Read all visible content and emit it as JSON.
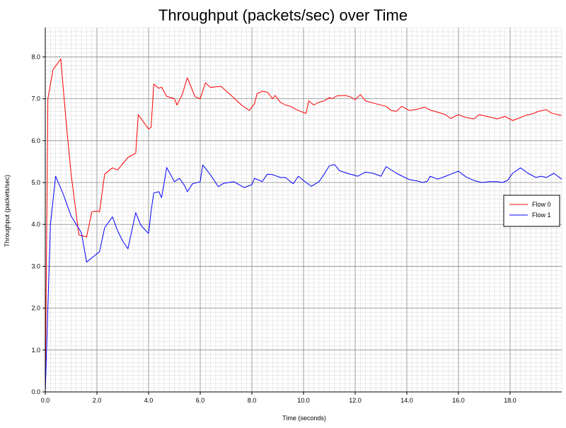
{
  "chart_data": {
    "type": "line",
    "title": "Throughput (packets/sec) over Time",
    "xlabel": "Time (seconds)",
    "ylabel": "Throughput (packets/sec)",
    "xlim": [
      0,
      20
    ],
    "ylim": [
      0,
      8.7
    ],
    "x_ticks": [
      0,
      2,
      4,
      6,
      8,
      10,
      12,
      14,
      16,
      18
    ],
    "x_tick_labels": [
      "0.0",
      "2.0",
      "4.0",
      "6.0",
      "8.0",
      "10.0",
      "12.0",
      "14.0",
      "16.0",
      "18.0"
    ],
    "y_ticks": [
      0,
      1,
      2,
      3,
      4,
      5,
      6,
      7,
      8
    ],
    "y_tick_labels": [
      "0.0",
      "1.0",
      "2.0",
      "3.0",
      "4.0",
      "5.0",
      "6.0",
      "7.0",
      "8.0"
    ],
    "grid": true,
    "legend_position": "right",
    "series": [
      {
        "name": "Flow 0",
        "color": "#ff0000",
        "x": [
          0.0,
          0.1,
          0.3,
          0.6,
          0.8,
          1.0,
          1.3,
          1.6,
          1.8,
          2.0,
          2.1,
          2.3,
          2.6,
          2.8,
          3.2,
          3.5,
          3.6,
          4.0,
          4.1,
          4.2,
          4.4,
          4.5,
          4.7,
          5.0,
          5.1,
          5.3,
          5.5,
          5.8,
          6.0,
          6.2,
          6.4,
          6.8,
          7.2,
          7.6,
          7.9,
          8.1,
          8.2,
          8.4,
          8.6,
          8.8,
          8.9,
          9.1,
          9.3,
          9.5,
          9.7,
          9.8,
          10.1,
          10.2,
          10.4,
          10.6,
          10.8,
          11.0,
          11.1,
          11.3,
          11.6,
          11.8,
          12.0,
          12.2,
          12.4,
          12.8,
          13.2,
          13.4,
          13.6,
          13.8,
          14.1,
          14.4,
          14.7,
          14.9,
          15.2,
          15.5,
          15.7,
          16.0,
          16.3,
          16.6,
          16.8,
          17.1,
          17.5,
          17.8,
          18.1,
          18.3,
          18.6,
          18.9,
          19.1,
          19.4,
          19.6,
          20.0
        ],
        "y": [
          0.0,
          7.0,
          7.7,
          7.95,
          6.5,
          5.2,
          3.75,
          3.7,
          4.3,
          4.32,
          4.3,
          5.2,
          5.35,
          5.3,
          5.6,
          5.7,
          6.62,
          6.28,
          6.32,
          7.35,
          7.25,
          7.28,
          7.06,
          7.0,
          6.85,
          7.1,
          7.5,
          7.05,
          7.0,
          7.38,
          7.27,
          7.3,
          7.08,
          6.85,
          6.72,
          6.88,
          7.12,
          7.18,
          7.16,
          7.0,
          7.08,
          6.92,
          6.85,
          6.82,
          6.75,
          6.72,
          6.65,
          6.95,
          6.85,
          6.92,
          6.95,
          7.03,
          7.0,
          7.07,
          7.08,
          7.05,
          6.98,
          7.1,
          6.95,
          6.88,
          6.82,
          6.72,
          6.7,
          6.82,
          6.72,
          6.75,
          6.8,
          6.73,
          6.68,
          6.62,
          6.53,
          6.62,
          6.55,
          6.52,
          6.62,
          6.58,
          6.52,
          6.58,
          6.48,
          6.53,
          6.6,
          6.65,
          6.7,
          6.74,
          6.66,
          6.6
        ]
      },
      {
        "name": "Flow 1",
        "color": "#0000ff",
        "x": [
          0.0,
          0.2,
          0.4,
          0.7,
          1.0,
          1.4,
          1.6,
          1.9,
          2.1,
          2.3,
          2.6,
          2.8,
          3.0,
          3.2,
          3.5,
          3.7,
          4.0,
          4.1,
          4.2,
          4.4,
          4.5,
          4.6,
          4.7,
          5.0,
          5.2,
          5.4,
          5.5,
          5.7,
          6.0,
          6.1,
          6.4,
          6.7,
          6.9,
          7.3,
          7.7,
          8.0,
          8.1,
          8.3,
          8.4,
          8.6,
          8.8,
          9.1,
          9.3,
          9.6,
          9.8,
          10.0,
          10.3,
          10.6,
          10.8,
          11.0,
          11.2,
          11.4,
          11.7,
          12.1,
          12.4,
          12.7,
          13.0,
          13.2,
          13.6,
          14.1,
          14.4,
          14.6,
          14.8,
          14.9,
          15.2,
          15.5,
          15.7,
          16.0,
          16.3,
          16.6,
          16.9,
          17.2,
          17.5,
          17.7,
          17.9,
          18.1,
          18.4,
          18.7,
          19.0,
          19.2,
          19.4,
          19.7,
          20.0
        ],
        "y": [
          0.0,
          4.0,
          5.15,
          4.72,
          4.2,
          3.8,
          3.1,
          3.25,
          3.35,
          3.92,
          4.18,
          3.85,
          3.6,
          3.42,
          4.28,
          3.98,
          3.78,
          4.32,
          4.75,
          4.78,
          4.64,
          4.98,
          5.36,
          5.02,
          5.1,
          4.92,
          4.78,
          4.97,
          5.02,
          5.42,
          5.18,
          4.9,
          4.98,
          5.02,
          4.88,
          4.95,
          5.1,
          5.05,
          5.02,
          5.2,
          5.19,
          5.12,
          5.12,
          4.97,
          5.15,
          5.05,
          4.91,
          5.02,
          5.2,
          5.4,
          5.43,
          5.28,
          5.22,
          5.15,
          5.25,
          5.22,
          5.15,
          5.38,
          5.22,
          5.07,
          5.04,
          5.0,
          5.03,
          5.15,
          5.08,
          5.15,
          5.2,
          5.27,
          5.13,
          5.05,
          5.0,
          5.02,
          5.02,
          5.0,
          5.05,
          5.22,
          5.35,
          5.22,
          5.12,
          5.15,
          5.12,
          5.22,
          5.08
        ]
      }
    ]
  }
}
